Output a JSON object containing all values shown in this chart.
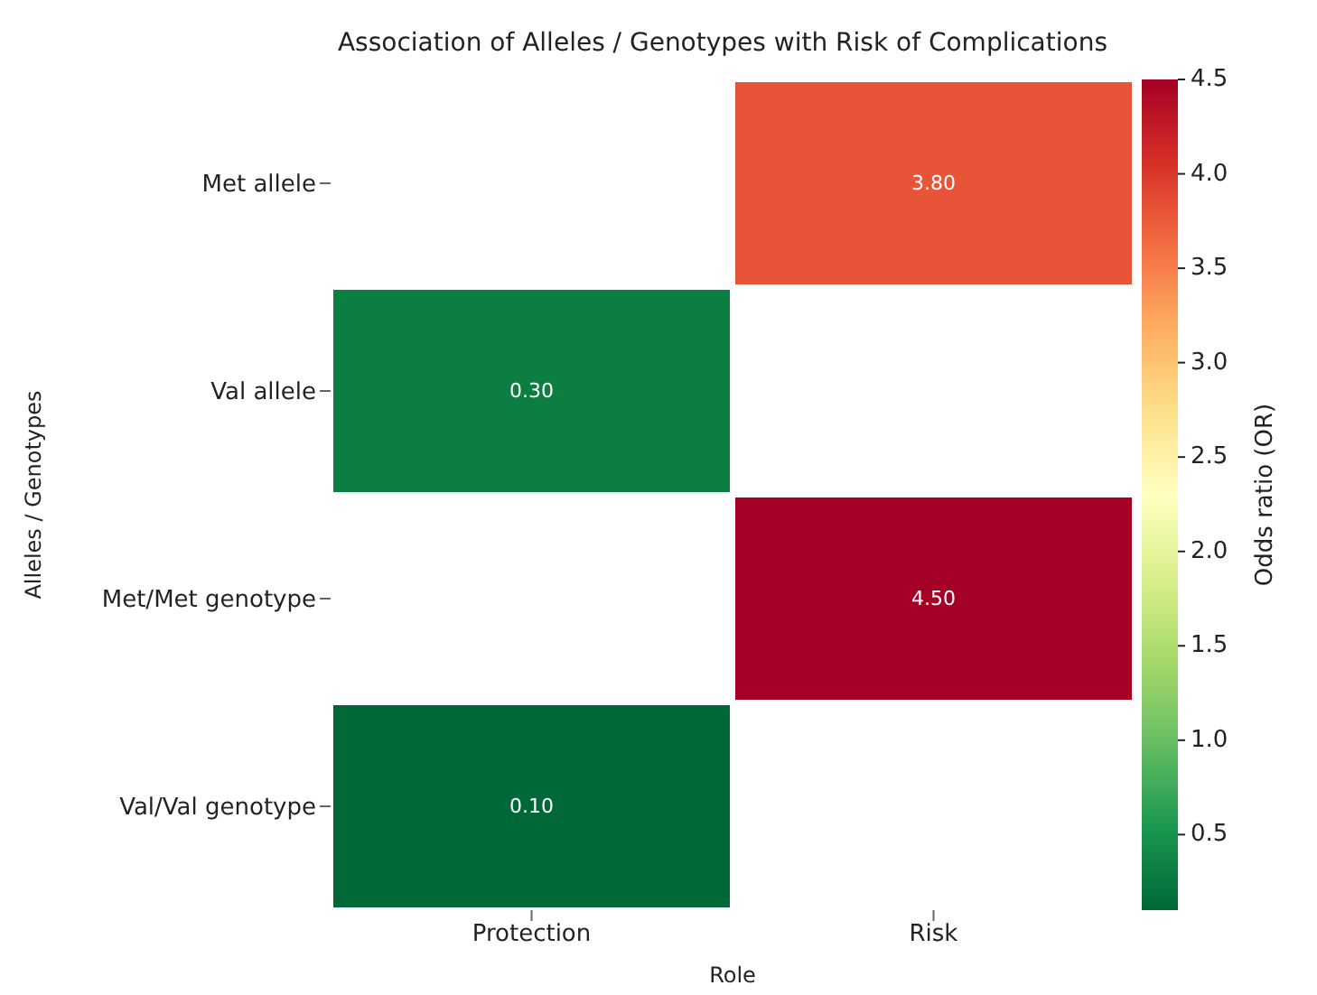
{
  "chart_data": {
    "type": "heatmap",
    "title": "Association of Alleles / Genotypes with Risk of Complications",
    "xlabel": "Role",
    "ylabel": "Alleles / Genotypes",
    "clabel": "Odds ratio (OR)",
    "categories": [
      "Protection",
      "Risk"
    ],
    "y_categories": [
      "Met allele",
      "Val allele",
      "Met/Met genotype",
      "Val/Val genotype"
    ],
    "cells": [
      [
        null,
        3.8
      ],
      [
        0.3,
        null
      ],
      [
        null,
        4.5
      ],
      [
        0.1,
        null
      ]
    ],
    "cell_labels": [
      [
        null,
        "3.80"
      ],
      [
        "0.30",
        null
      ],
      [
        null,
        "4.50"
      ],
      [
        "0.10",
        null
      ]
    ],
    "clim": [
      0.1,
      4.5
    ],
    "cticks": [
      0.5,
      {
        "value": 1,
        "label": "1.0"
      },
      1.5,
      {
        "value": 2,
        "label": "2.0"
      },
      2.5,
      {
        "value": 3,
        "label": "3.0"
      },
      3.5,
      {
        "value": 4,
        "label": "4.0"
      },
      4.5
    ]
  }
}
